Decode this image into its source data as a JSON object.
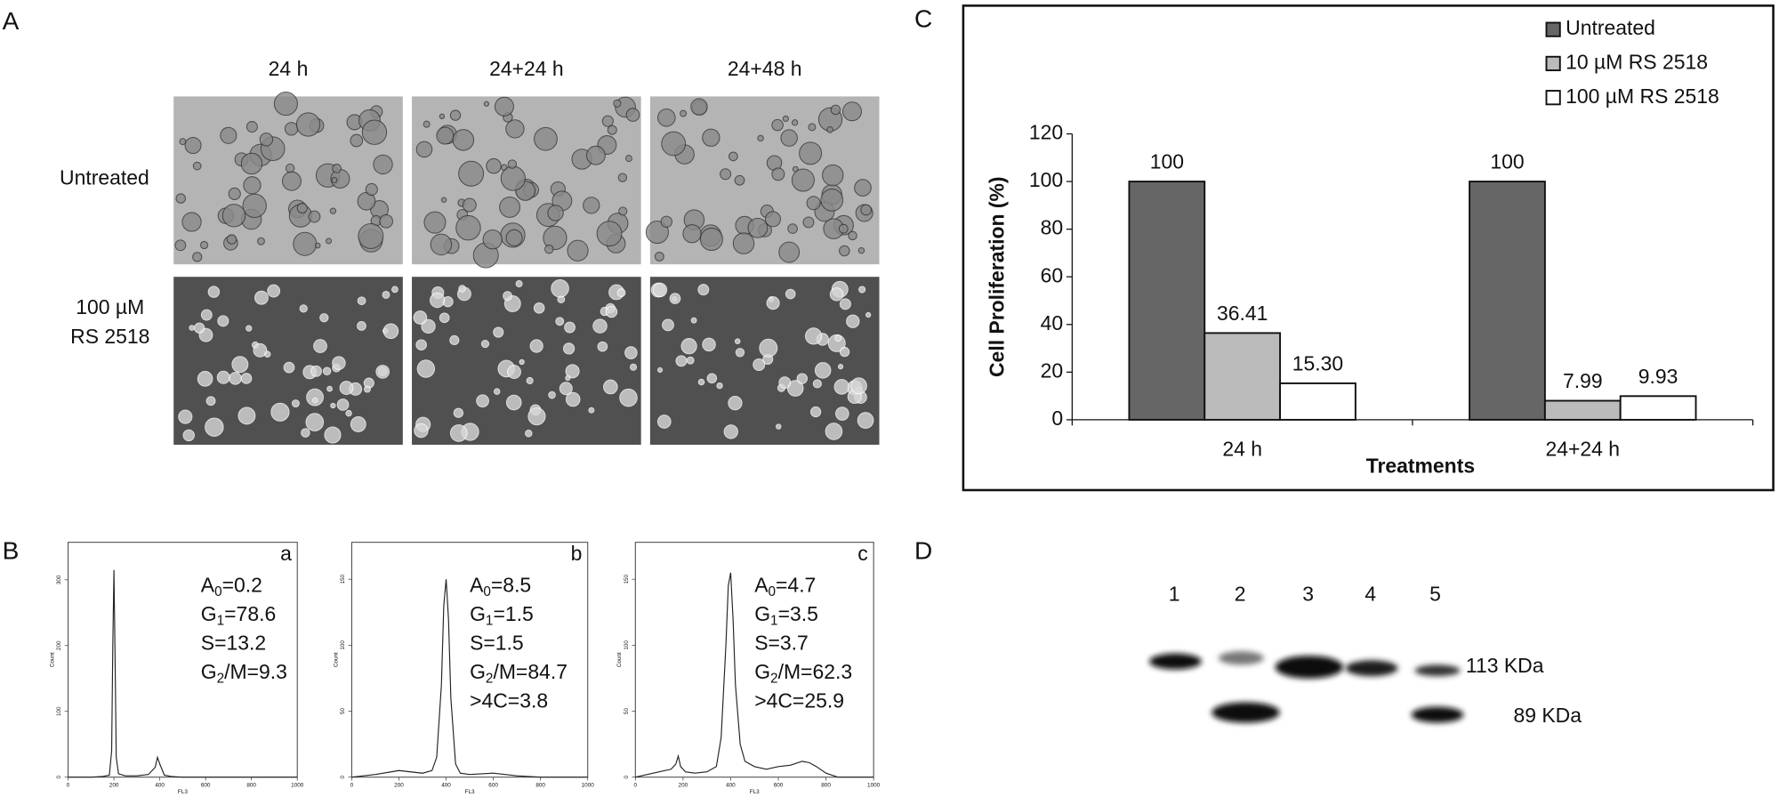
{
  "panel_a": {
    "label": "A",
    "columns": [
      "24 h",
      "24+24 h",
      "24+48 h"
    ],
    "rows": [
      [
        "Untreated"
      ],
      [
        "100 µM",
        "RS 2518"
      ]
    ]
  },
  "panel_b": {
    "label": "B"
  },
  "panel_c": {
    "label": "C"
  },
  "panel_d": {
    "label": "D",
    "lanes": [
      "1",
      "2",
      "3",
      "4",
      "5"
    ],
    "markers": [
      "113 KDa",
      "89 KDa"
    ]
  },
  "chart_data": [
    {
      "type": "bar",
      "categories": [
        "24 h",
        "24+24 h"
      ],
      "series": [
        {
          "name": "Untreated",
          "color": "#666666",
          "values": [
            100,
            100
          ]
        },
        {
          "name": "10 µM RS 2518",
          "color": "#bbbbbb",
          "values": [
            36.41,
            7.99
          ]
        },
        {
          "name": "100 µM RS 2518",
          "color": "#ffffff",
          "values": [
            15.3,
            9.93
          ],
          "value_labels": [
            "15.30",
            "9.93"
          ]
        }
      ],
      "ylim": [
        0,
        120
      ],
      "yticks": [
        0,
        20,
        40,
        60,
        80,
        100,
        120
      ],
      "xlabel": "Treatments",
      "ylabel": "Cell Proliferation (%)",
      "legend": "top-right"
    },
    {
      "type": "line",
      "panel_label": "a",
      "annotation_lines": [
        [
          "A",
          "0",
          "=0.2"
        ],
        [
          "G",
          "1",
          "=78.6"
        ],
        [
          "S=13.2"
        ],
        [
          "G",
          "2",
          "/M=9.3"
        ]
      ],
      "xlabel": "FL3",
      "ylabel": "Count",
      "xlim": [
        0,
        1000
      ],
      "xticks": [
        0,
        200,
        400,
        600,
        800,
        1000
      ],
      "ylim": [
        0,
        357
      ],
      "yticks": [
        0,
        100,
        200,
        300
      ],
      "series": [
        {
          "color": "#222222",
          "x": [
            0,
            100,
            150,
            180,
            190,
            195,
            200,
            205,
            210,
            220,
            250,
            300,
            350,
            380,
            390,
            400,
            420,
            450,
            500,
            600,
            800,
            1000
          ],
          "values": [
            0,
            0,
            1,
            3,
            40,
            200,
            315,
            180,
            30,
            5,
            2,
            2,
            4,
            15,
            30,
            20,
            3,
            1,
            0,
            0,
            0,
            0
          ]
        }
      ]
    },
    {
      "type": "line",
      "panel_label": "b",
      "annotation_lines": [
        [
          "A",
          "0",
          "=8.5"
        ],
        [
          "G",
          "1",
          "=1.5"
        ],
        [
          "S=1.5"
        ],
        [
          "G",
          "2",
          "/M=84.7"
        ],
        [
          ">4C=3.8"
        ]
      ],
      "xlabel": "FL3",
      "ylabel": "Count",
      "xlim": [
        0,
        1000
      ],
      "xticks": [
        0,
        200,
        400,
        600,
        800,
        1000
      ],
      "ylim": [
        0,
        178
      ],
      "yticks": [
        0,
        50,
        100,
        150
      ],
      "series": [
        {
          "color": "#222222",
          "x": [
            0,
            100,
            200,
            250,
            300,
            340,
            360,
            380,
            390,
            400,
            410,
            420,
            440,
            460,
            500,
            600,
            700,
            800,
            1000
          ],
          "values": [
            0,
            2,
            5,
            4,
            3,
            5,
            15,
            70,
            130,
            150,
            120,
            60,
            10,
            3,
            2,
            3,
            1,
            0,
            0
          ]
        }
      ]
    },
    {
      "type": "line",
      "panel_label": "c",
      "annotation_lines": [
        [
          "A",
          "0",
          "=4.7"
        ],
        [
          "G",
          "1",
          "=3.5"
        ],
        [
          "S=3.7"
        ],
        [
          "G",
          "2",
          "/M=62.3"
        ],
        [
          ">4C=25.9"
        ]
      ],
      "xlabel": "FL3",
      "ylabel": "Count",
      "xlim": [
        0,
        1000
      ],
      "xticks": [
        0,
        200,
        400,
        600,
        800,
        1000
      ],
      "ylim": [
        0,
        178
      ],
      "yticks": [
        0,
        50,
        100,
        150
      ],
      "series": [
        {
          "color": "#222222",
          "x": [
            0,
            100,
            150,
            170,
            180,
            190,
            210,
            250,
            300,
            340,
            360,
            380,
            390,
            400,
            410,
            420,
            440,
            460,
            500,
            550,
            600,
            650,
            700,
            730,
            760,
            800,
            850,
            1000
          ],
          "values": [
            0,
            4,
            6,
            10,
            16,
            8,
            4,
            3,
            4,
            8,
            30,
            100,
            145,
            155,
            120,
            70,
            25,
            12,
            8,
            6,
            8,
            9,
            12,
            11,
            8,
            3,
            0,
            0
          ]
        }
      ]
    }
  ]
}
